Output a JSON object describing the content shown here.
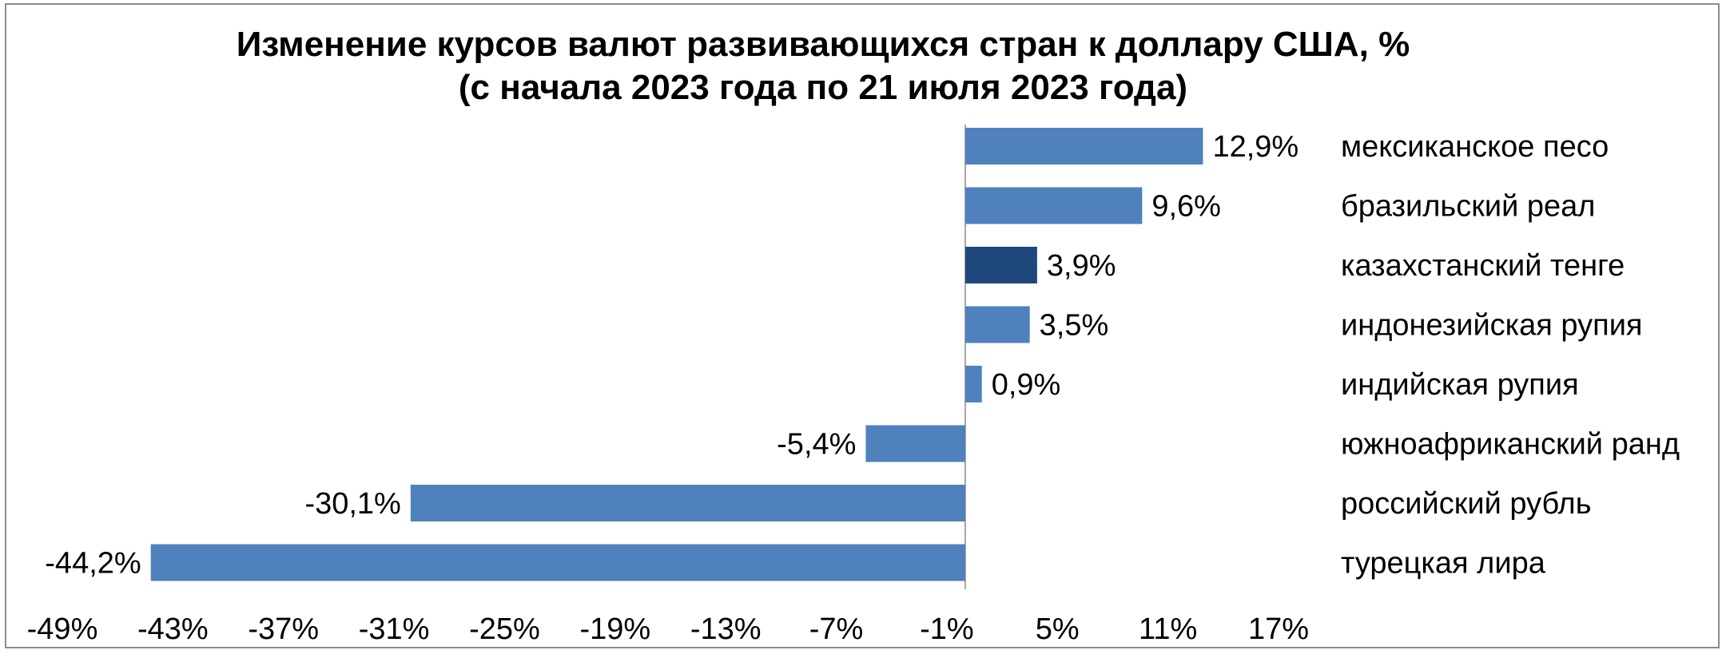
{
  "chart_data": {
    "type": "bar",
    "orientation": "horizontal",
    "title": "Изменение курсов валют развивающихся стран к доллару США, %",
    "subtitle": "(с начала 2023 года по 21 июля 2023 года)",
    "xlabel": "",
    "ylabel": "",
    "xlim": [
      -49,
      17
    ],
    "x_ticks": [
      "-49%",
      "-43%",
      "-37%",
      "-31%",
      "-25%",
      "-19%",
      "-13%",
      "-7%",
      "-1%",
      "5%",
      "11%",
      "17%"
    ],
    "x_tick_values": [
      -49,
      -43,
      -37,
      -31,
      -25,
      -19,
      -13,
      -7,
      -1,
      5,
      11,
      17
    ],
    "grid": false,
    "legend": "none",
    "categories": [
      "мексиканское песо",
      "бразильский реал",
      "казахстанский тенге",
      "индонезийская рупия",
      "индийская рупия",
      "южноафриканский ранд",
      "российский рубль",
      "турецкая лира"
    ],
    "values": [
      12.9,
      9.6,
      3.9,
      3.5,
      0.9,
      -5.4,
      -30.1,
      -44.2
    ],
    "data_labels": [
      "12,9%",
      "9,6%",
      "3,9%",
      "3,5%",
      "0,9%",
      "-5,4%",
      "-30,1%",
      "-44,2%"
    ],
    "colors": {
      "bar": "#4f81bd",
      "highlight": "#1f497d",
      "axis": "#a6a6a6",
      "border": "#8c8c8c"
    },
    "highlight_category": "казахстанский тенге"
  }
}
